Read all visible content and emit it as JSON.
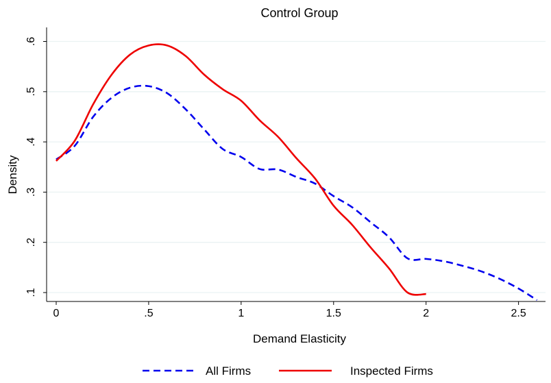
{
  "chart_data": {
    "type": "line",
    "title": "Control Group",
    "xlabel": "Demand Elasticity",
    "ylabel": "Density",
    "xlim": [
      0,
      2.6
    ],
    "ylim": [
      0.1,
      0.6
    ],
    "xticks": [
      0,
      0.5,
      1,
      1.5,
      2,
      2.5
    ],
    "xtick_labels": [
      "0",
      ".5",
      "1",
      "1.5",
      "2",
      "2.5"
    ],
    "yticks": [
      0.1,
      0.2,
      0.3,
      0.4,
      0.5,
      0.6
    ],
    "ytick_labels": [
      ".1",
      ".2",
      ".3",
      ".4",
      ".5",
      ".6"
    ],
    "grid": "horizontal",
    "legend_position": "bottom",
    "series": [
      {
        "name": "All Firms",
        "color": "#0000ee",
        "style": "dashed",
        "x": [
          0,
          0.1,
          0.2,
          0.3,
          0.4,
          0.5,
          0.6,
          0.7,
          0.8,
          0.9,
          1.0,
          1.1,
          1.2,
          1.3,
          1.4,
          1.5,
          1.6,
          1.7,
          1.8,
          1.9,
          2.0,
          2.1,
          2.2,
          2.3,
          2.4,
          2.5,
          2.6
        ],
        "y": [
          0.365,
          0.392,
          0.45,
          0.488,
          0.508,
          0.511,
          0.497,
          0.465,
          0.425,
          0.386,
          0.37,
          0.346,
          0.345,
          0.33,
          0.317,
          0.292,
          0.27,
          0.24,
          0.21,
          0.168,
          0.167,
          0.162,
          0.153,
          0.142,
          0.127,
          0.108,
          0.085
        ]
      },
      {
        "name": "Inspected Firms",
        "color": "#ee0000",
        "style": "solid",
        "x": [
          0,
          0.1,
          0.2,
          0.3,
          0.4,
          0.5,
          0.6,
          0.7,
          0.8,
          0.9,
          1.0,
          1.1,
          1.2,
          1.3,
          1.4,
          1.5,
          1.6,
          1.7,
          1.8,
          1.9,
          2.0
        ],
        "y": [
          0.362,
          0.402,
          0.475,
          0.534,
          0.574,
          0.592,
          0.592,
          0.571,
          0.534,
          0.505,
          0.482,
          0.443,
          0.41,
          0.367,
          0.327,
          0.273,
          0.235,
          0.19,
          0.148,
          0.1,
          0.097
        ]
      }
    ]
  }
}
